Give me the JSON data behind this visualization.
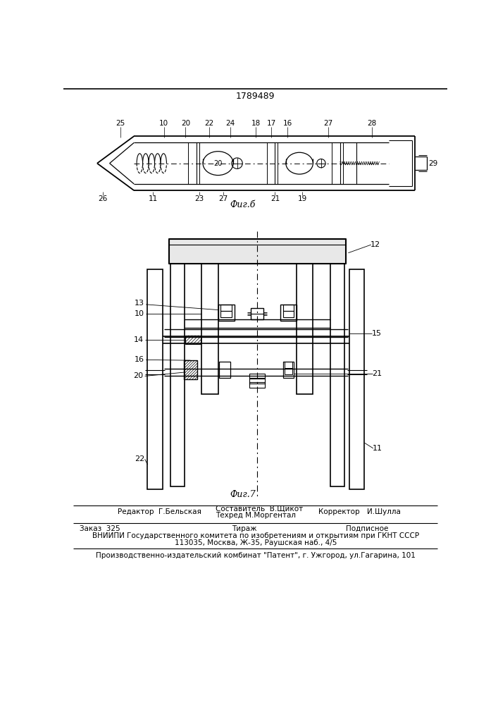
{
  "patent_number": "1789489",
  "fig6_label": "Фиг.б",
  "fig7_label": "Фиг.7",
  "background_color": "#ffffff",
  "line_color": "#000000",
  "editor_line": "Редактор  Г.Бельская",
  "composer_line1": "Составитель  В.Щикот",
  "composer_line2": "Техред М.Моргентал",
  "corrector_label": "Корректор",
  "corrector_name": "И.Шулла",
  "order_line": "Заказ  325",
  "tirazh_line": "Тираж",
  "podpisnoe_line": "Подписное",
  "vniipи_line": "ВНИИПИ Государственного комитета по изобретениям и открытиям при ГКНТ СССР",
  "address_line": "113035, Москва, Ж-35, Раушская наб., 4/5",
  "factory_line": "Производственно-издательский комбинат \"Патент\", г. Ужгород, ул.Гагарина, 101"
}
